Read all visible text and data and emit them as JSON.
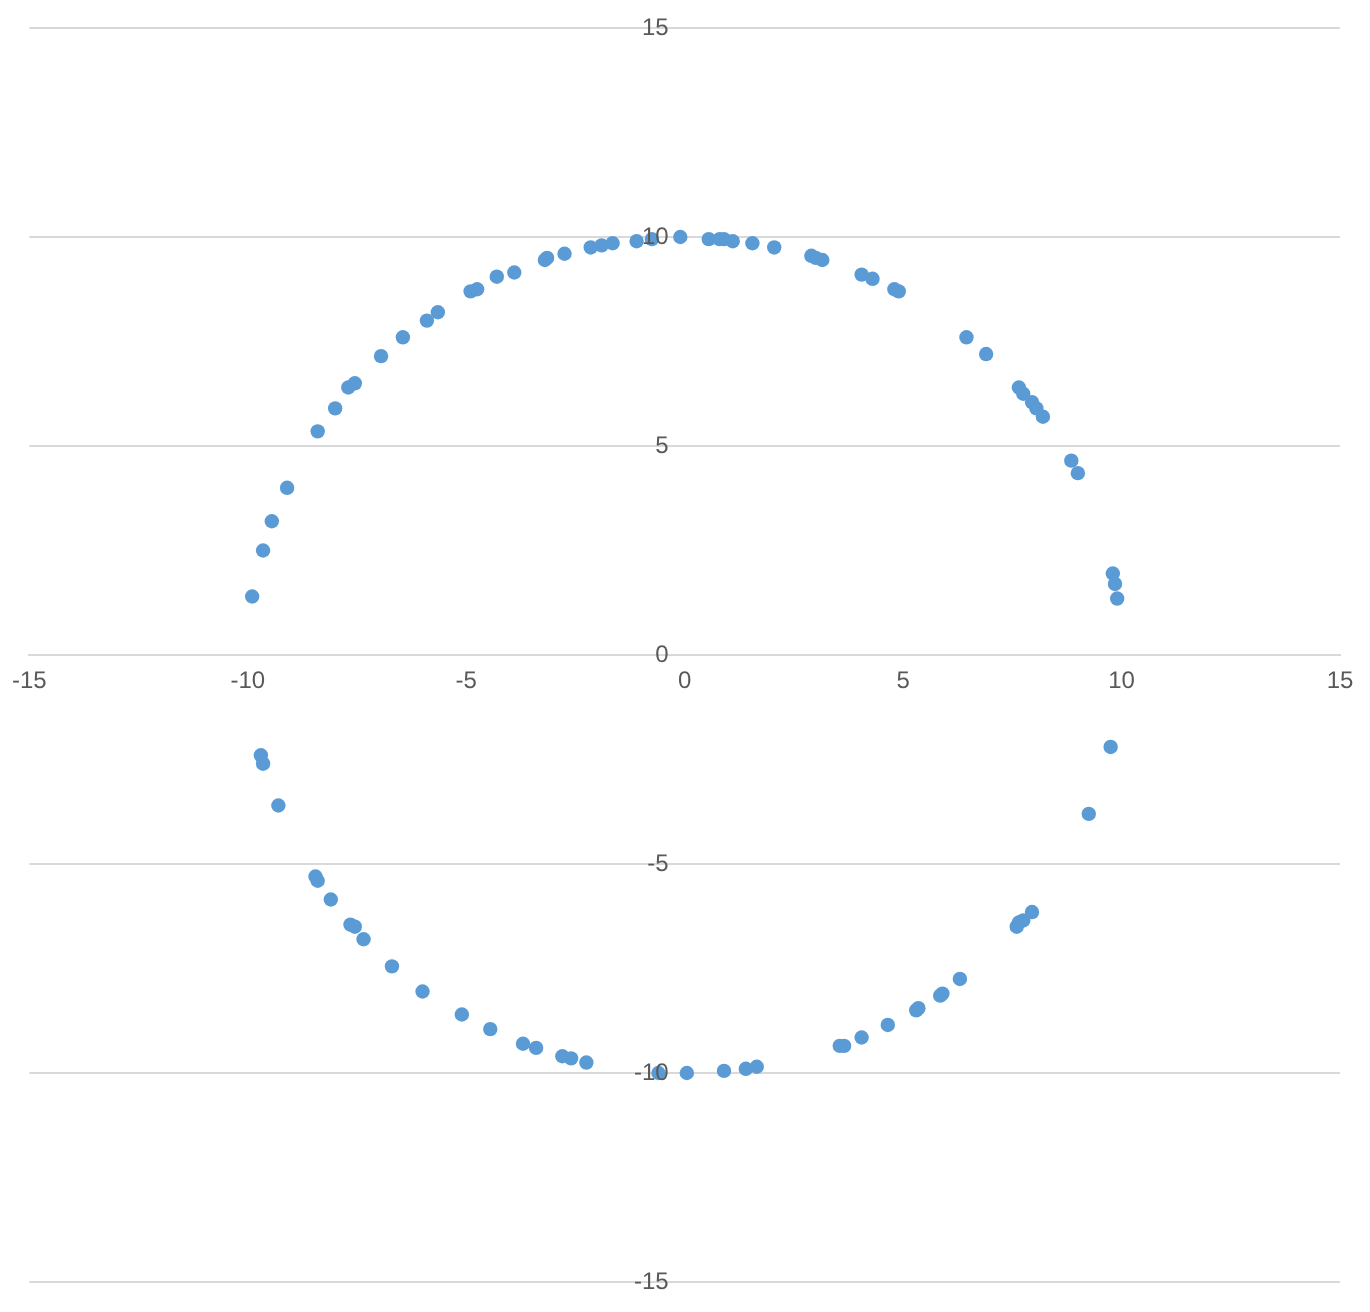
{
  "chart_data": {
    "type": "scatter",
    "color": "#5b9bd5",
    "marker": "circle",
    "grid": "y",
    "x": [
      -9.9,
      -9.65,
      -9.45,
      -9.1,
      -8.4,
      -8.0,
      -7.7,
      -7.55,
      -6.95,
      -6.45,
      -5.9,
      -5.65,
      -4.9,
      -4.75,
      -4.3,
      -3.9,
      -3.2,
      -3.15,
      -2.75,
      -2.15,
      -1.9,
      -1.65,
      -1.1,
      -0.75,
      -0.1,
      0.55,
      0.8,
      0.9,
      1.1,
      1.55,
      2.05,
      2.9,
      3.0,
      3.15,
      4.05,
      4.3,
      4.8,
      4.9,
      6.45,
      6.9,
      7.65,
      7.75,
      7.95,
      8.05,
      8.2,
      8.85,
      9.0,
      9.8,
      9.85,
      9.9,
      -9.7,
      -9.65,
      -9.3,
      -8.45,
      -8.4,
      -8.1,
      -7.65,
      -7.55,
      -7.35,
      -6.7,
      -6.0,
      -5.1,
      -4.45,
      -3.7,
      -3.4,
      -2.8,
      -2.6,
      -2.25,
      -0.6,
      0.05,
      0.9,
      1.4,
      1.65,
      3.55,
      3.65,
      4.05,
      4.65,
      5.3,
      5.35,
      5.85,
      5.9,
      6.3,
      7.6,
      7.65,
      7.75,
      7.95,
      9.25,
      9.75
    ],
    "values": [
      1.4,
      2.5,
      3.2,
      4.0,
      5.35,
      5.9,
      6.4,
      6.5,
      7.15,
      7.6,
      8.0,
      8.2,
      8.7,
      8.75,
      9.05,
      9.15,
      9.45,
      9.5,
      9.6,
      9.75,
      9.8,
      9.85,
      9.9,
      9.95,
      10.0,
      9.95,
      9.95,
      9.95,
      9.9,
      9.85,
      9.75,
      9.55,
      9.5,
      9.45,
      9.1,
      9.0,
      8.75,
      8.7,
      7.6,
      7.2,
      6.4,
      6.25,
      6.05,
      5.9,
      5.7,
      4.65,
      4.35,
      1.95,
      1.7,
      1.35,
      -2.4,
      -2.6,
      -3.6,
      -5.3,
      -5.4,
      -5.85,
      -6.45,
      -6.5,
      -6.8,
      -7.45,
      -8.05,
      -8.6,
      -8.95,
      -9.3,
      -9.4,
      -9.6,
      -9.65,
      -9.75,
      -10.0,
      -10.0,
      -9.95,
      -9.9,
      -9.85,
      -9.35,
      -9.35,
      -9.15,
      -8.85,
      -8.5,
      -8.45,
      -8.15,
      -8.1,
      -7.75,
      -6.5,
      -6.4,
      -6.35,
      -6.15,
      -3.8,
      -2.2
    ],
    "xlim": [
      -15,
      15
    ],
    "ylim": [
      -15,
      15
    ],
    "xticks": [
      -15,
      -10,
      -5,
      0,
      5,
      10,
      15
    ],
    "yticks": [
      -15,
      -10,
      -5,
      0,
      5,
      10,
      15
    ]
  }
}
